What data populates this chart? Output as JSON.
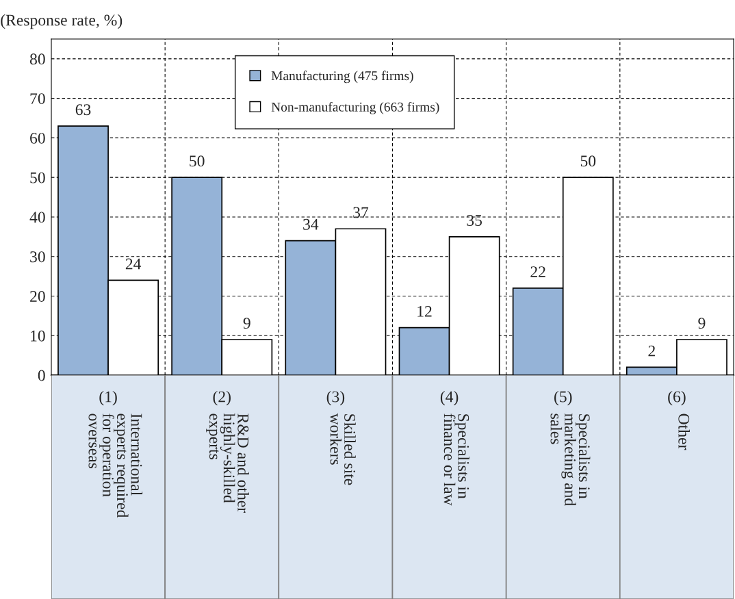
{
  "chart_data": {
    "type": "bar",
    "ylabel": "(Response rate, %)",
    "categories": [
      "(1)\nInternational\nexperts required\nfor operation\noverseas",
      "(2)\nR&D and other\nhighly-skilled\nexperts",
      "(3)\nSkilled site\nworkers",
      "(4)\nSpecialists in\nfinance or law",
      "(5)\nSpecialists in\nmarketing and\nsales",
      "(6)\nOther"
    ],
    "series": [
      {
        "name": "Manufacturing (475 firms)",
        "color": "#95b3d7",
        "values": [
          63,
          50,
          34,
          12,
          22,
          2
        ]
      },
      {
        "name": "Non-manufacturing (663 firms)",
        "color": "#ffffff",
        "values": [
          24,
          9,
          37,
          35,
          50,
          9
        ]
      }
    ],
    "value_labels": [
      [
        "63",
        "50",
        "34",
        "12",
        "22",
        "2"
      ],
      [
        "24",
        "9",
        "37",
        "35",
        "50",
        "9"
      ]
    ],
    "ylim": [
      0,
      85
    ],
    "yticks": [
      0,
      10,
      20,
      30,
      40,
      50,
      60,
      70,
      80
    ],
    "grid": true,
    "legend": "top"
  }
}
